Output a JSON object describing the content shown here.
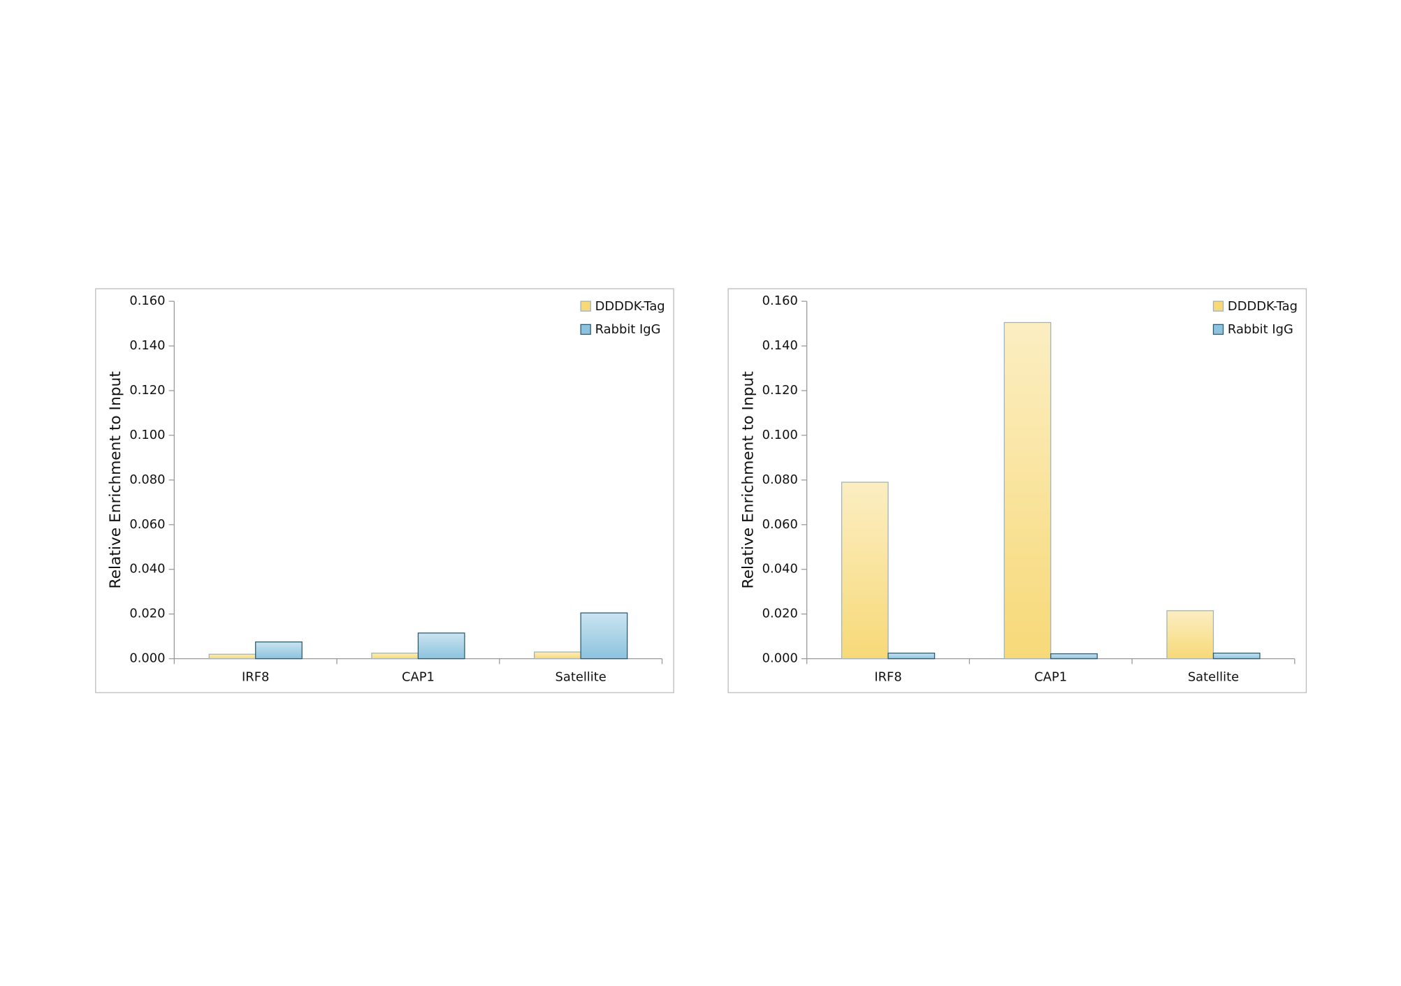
{
  "chart_data": [
    {
      "type": "bar",
      "y_label": "Relative Enrichment to Input",
      "categories": [
        "IRF8",
        "CAP1",
        "Satellite"
      ],
      "series": [
        {
          "name": "DDDDK-Tag",
          "color": "#f7d978",
          "values": [
            0.002,
            0.0025,
            0.003
          ]
        },
        {
          "name": "Rabbit IgG",
          "color": "#8cc3de",
          "values": [
            0.0075,
            0.0115,
            0.0205
          ]
        }
      ],
      "ylim": [
        0,
        0.16
      ],
      "yticks": [
        {
          "value": 0,
          "label": "0.000"
        },
        {
          "value": 0.02,
          "label": "0.020"
        },
        {
          "value": 0.04,
          "label": "0.040"
        },
        {
          "value": 0.06,
          "label": "0.060"
        },
        {
          "value": 0.08,
          "label": "0.080"
        },
        {
          "value": 0.1,
          "label": "0.100"
        },
        {
          "value": 0.12,
          "label": "0.120"
        },
        {
          "value": 0.14,
          "label": "0.140"
        },
        {
          "value": 0.16,
          "label": "0.160"
        }
      ],
      "legend": "upper right"
    },
    {
      "type": "bar",
      "y_label": "Relative Enrichment to Input",
      "categories": [
        "IRF8",
        "CAP1",
        "Satellite"
      ],
      "series": [
        {
          "name": "DDDDK-Tag",
          "color": "#f7d978",
          "values": [
            0.079,
            0.1505,
            0.0215
          ]
        },
        {
          "name": "Rabbit IgG",
          "color": "#8cc3de",
          "values": [
            0.0025,
            0.0022,
            0.0025
          ]
        }
      ],
      "ylim": [
        0,
        0.16
      ],
      "yticks": [
        {
          "value": 0,
          "label": "0.000"
        },
        {
          "value": 0.02,
          "label": "0.020"
        },
        {
          "value": 0.04,
          "label": "0.040"
        },
        {
          "value": 0.06,
          "label": "0.060"
        },
        {
          "value": 0.08,
          "label": "0.080"
        },
        {
          "value": 0.1,
          "label": "0.100"
        },
        {
          "value": 0.12,
          "label": "0.120"
        },
        {
          "value": 0.14,
          "label": "0.140"
        },
        {
          "value": 0.16,
          "label": "0.160"
        }
      ],
      "legend": "upper right"
    }
  ]
}
